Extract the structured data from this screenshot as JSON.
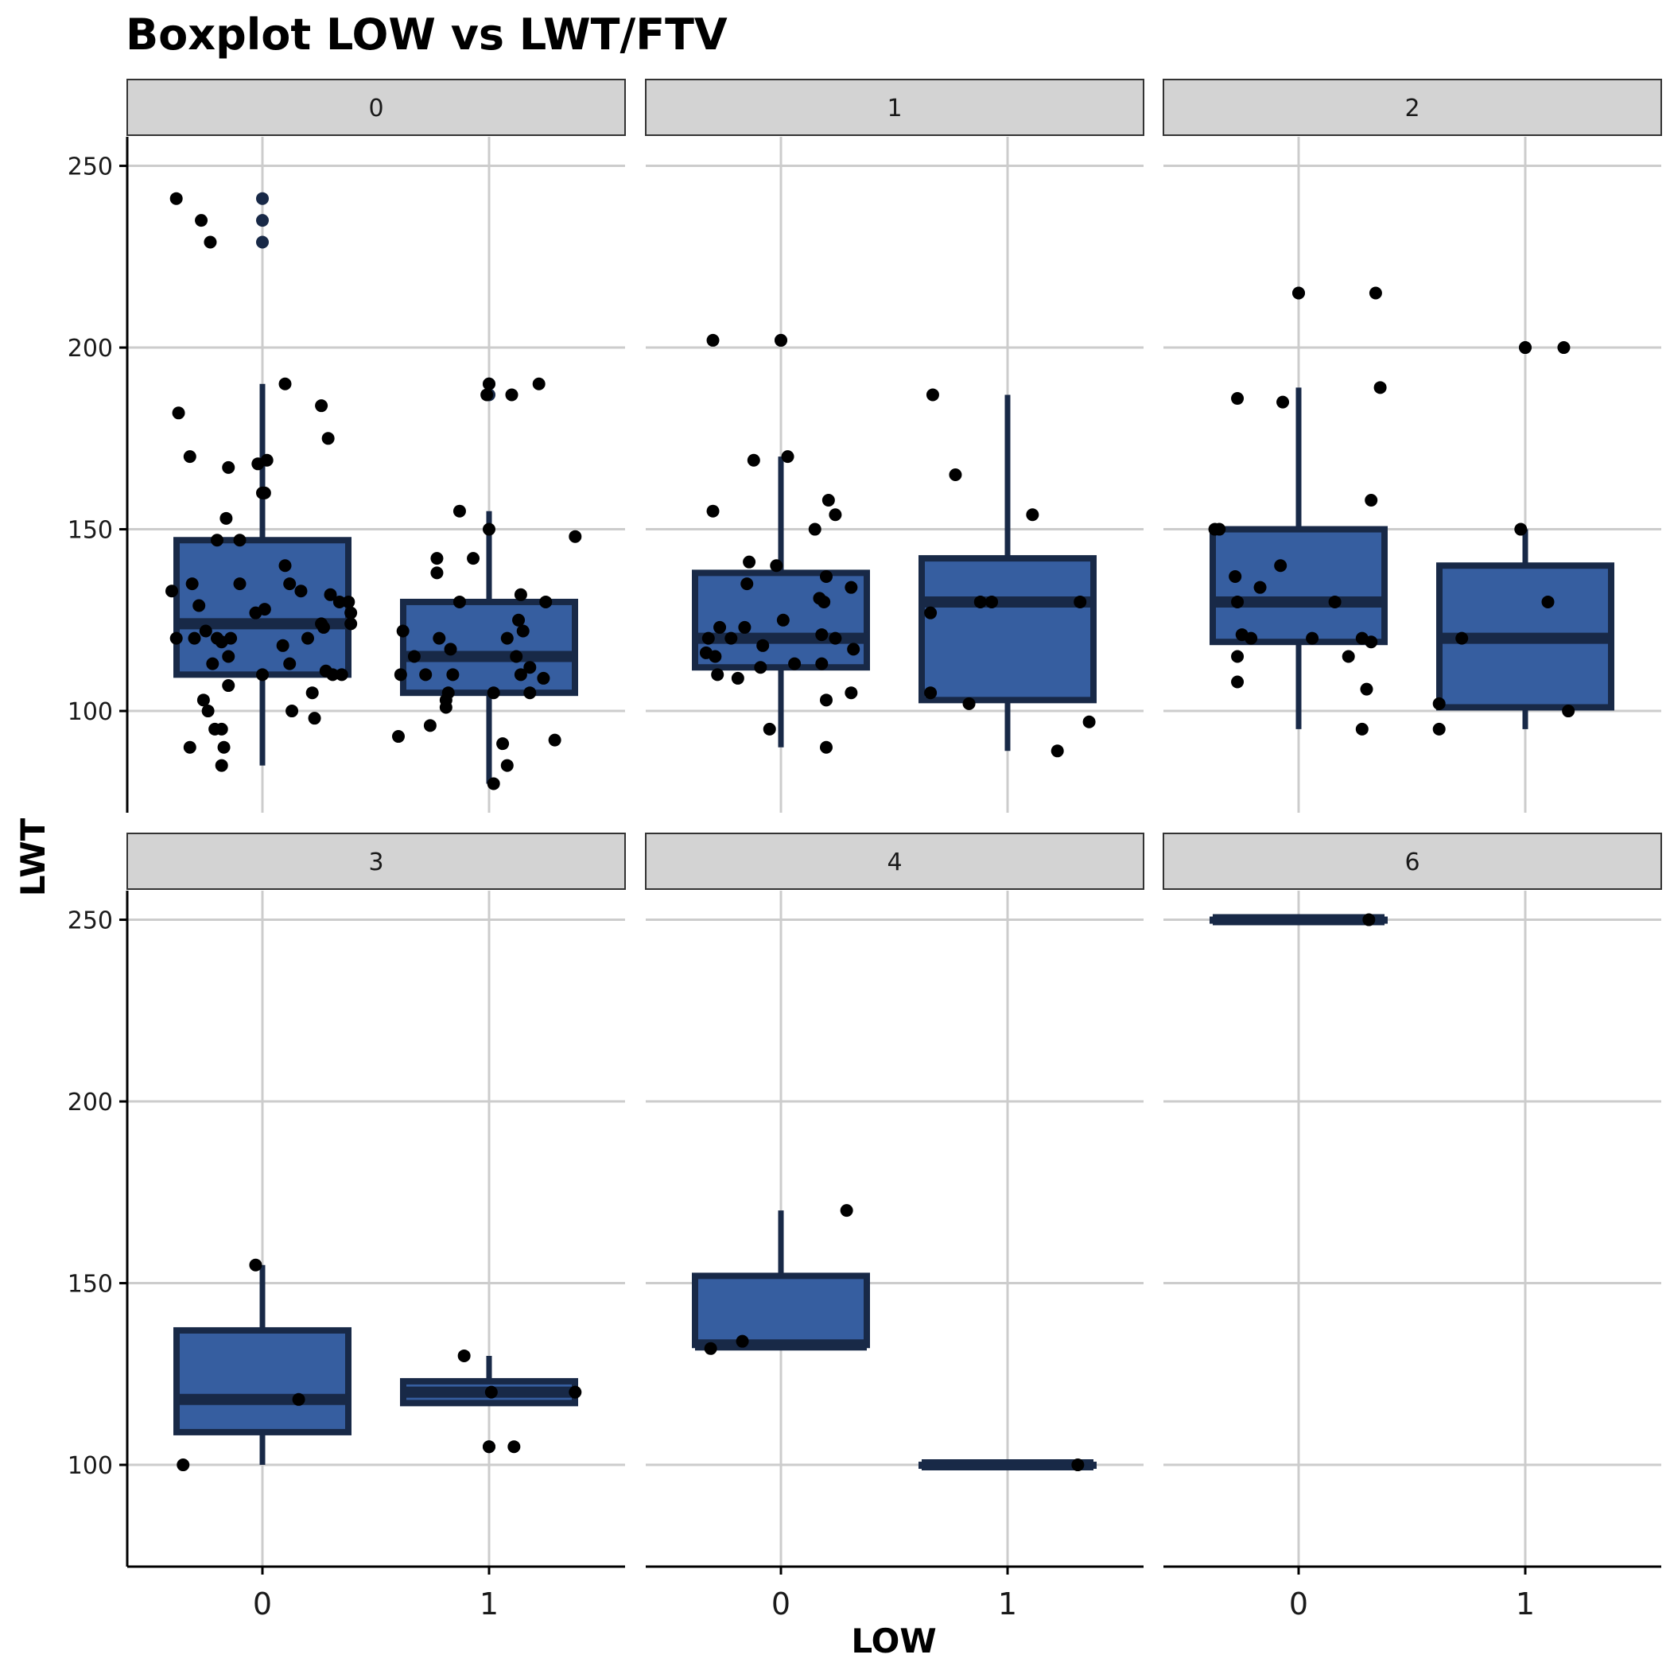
{
  "colors": {
    "box_fill": "#365ea0",
    "box_line": "#182947",
    "outlier": "#182947",
    "point": "#000000",
    "grid": "#cccccc",
    "strip": "#d3d3d3"
  },
  "chart_data": {
    "type": "boxplot",
    "title": "Boxplot LOW vs LWT/FTV",
    "xlabel": "LOW",
    "ylabel": "LWT",
    "ylim": [
      72,
      258
    ],
    "yticks": [
      100,
      150,
      200,
      250
    ],
    "categories": [
      "0",
      "1"
    ],
    "grid": true,
    "facet_variable": "FTV",
    "facets": [
      {
        "label": "0",
        "groups": [
          {
            "x": "0",
            "q1": 110,
            "median": 124,
            "q3": 147,
            "whisker_low": 85,
            "whisker_high": 190,
            "outliers": [
              241,
              235,
              229
            ],
            "points": [
              [
                -0.38,
                241
              ],
              [
                -0.27,
                235
              ],
              [
                -0.23,
                229
              ],
              [
                -0.37,
                182
              ],
              [
                -0.32,
                170
              ],
              [
                -0.15,
                167
              ],
              [
                0.1,
                190
              ],
              [
                0.26,
                184
              ],
              [
                0.29,
                175
              ],
              [
                -0.02,
                168
              ],
              [
                0.02,
                169
              ],
              [
                0,
                160
              ],
              [
                0.01,
                160
              ],
              [
                -0.16,
                153
              ],
              [
                -0.2,
                147
              ],
              [
                -0.1,
                147
              ],
              [
                -0.4,
                133
              ],
              [
                -0.31,
                135
              ],
              [
                -0.28,
                129
              ],
              [
                -0.38,
                120
              ],
              [
                -0.3,
                120
              ],
              [
                -0.25,
                122
              ],
              [
                -0.18,
                119
              ],
              [
                -0.14,
                120
              ],
              [
                -0.1,
                135
              ],
              [
                -0.2,
                120
              ],
              [
                -0.22,
                113
              ],
              [
                -0.15,
                115
              ],
              [
                -0.15,
                107
              ],
              [
                -0.26,
                103
              ],
              [
                -0.24,
                100
              ],
              [
                -0.21,
                95
              ],
              [
                -0.18,
                95
              ],
              [
                -0.32,
                90
              ],
              [
                -0.17,
                90
              ],
              [
                -0.18,
                85
              ],
              [
                -0.03,
                127
              ],
              [
                0.01,
                128
              ],
              [
                0.1,
                140
              ],
              [
                0.12,
                135
              ],
              [
                0.17,
                133
              ],
              [
                0.09,
                118
              ],
              [
                0.2,
                120
              ],
              [
                0.12,
                113
              ],
              [
                0.0,
                110
              ],
              [
                0.13,
                100
              ],
              [
                0.22,
                105
              ],
              [
                0.23,
                98
              ],
              [
                0.27,
                123
              ],
              [
                0.26,
                124
              ],
              [
                0.3,
                132
              ],
              [
                0.34,
                130
              ],
              [
                0.38,
                130
              ],
              [
                0.39,
                127
              ],
              [
                0.39,
                124
              ],
              [
                0.28,
                111
              ],
              [
                0.31,
                110
              ],
              [
                0.35,
                110
              ]
            ]
          },
          {
            "x": "1",
            "q1": 105,
            "median": 115,
            "q3": 130,
            "whisker_low": 80,
            "whisker_high": 155,
            "outliers": [
              190,
              187
            ],
            "points": [
              [
                0,
                190
              ],
              [
                -0.01,
                187
              ],
              [
                0.1,
                187
              ],
              [
                0.22,
                190
              ],
              [
                -0.13,
                155
              ],
              [
                0.0,
                150
              ],
              [
                0.38,
                148
              ],
              [
                -0.07,
                142
              ],
              [
                -0.23,
                142
              ],
              [
                -0.23,
                138
              ],
              [
                -0.38,
                122
              ],
              [
                -0.33,
                115
              ],
              [
                -0.28,
                110
              ],
              [
                -0.22,
                120
              ],
              [
                -0.17,
                117
              ],
              [
                -0.16,
                110
              ],
              [
                -0.18,
                105
              ],
              [
                -0.19,
                103
              ],
              [
                -0.19,
                101
              ],
              [
                -0.39,
                110
              ],
              [
                -0.4,
                93
              ],
              [
                -0.26,
                96
              ],
              [
                -0.13,
                130
              ],
              [
                0.08,
                120
              ],
              [
                0.13,
                125
              ],
              [
                0.14,
                132
              ],
              [
                0.15,
                122
              ],
              [
                0.12,
                115
              ],
              [
                0.14,
                110
              ],
              [
                0.18,
                112
              ],
              [
                0.18,
                105
              ],
              [
                0.24,
                109
              ],
              [
                0.25,
                130
              ],
              [
                0.02,
                105
              ],
              [
                0.06,
                91
              ],
              [
                0.08,
                85
              ],
              [
                0.29,
                92
              ],
              [
                0.02,
                80
              ]
            ]
          }
        ]
      },
      {
        "label": "1",
        "groups": [
          {
            "x": "0",
            "q1": 112,
            "median": 120,
            "q3": 138,
            "whisker_low": 90,
            "whisker_high": 170,
            "outliers": [
              202
            ],
            "points": [
              [
                0,
                202
              ],
              [
                -0.3,
                202
              ],
              [
                -0.3,
                155
              ],
              [
                -0.12,
                169
              ],
              [
                0.03,
                170
              ],
              [
                -0.14,
                141
              ],
              [
                -0.02,
                140
              ],
              [
                -0.15,
                135
              ],
              [
                -0.32,
                120
              ],
              [
                -0.27,
                123
              ],
              [
                -0.22,
                120
              ],
              [
                -0.16,
                123
              ],
              [
                -0.08,
                118
              ],
              [
                -0.33,
                116
              ],
              [
                -0.29,
                115
              ],
              [
                -0.28,
                110
              ],
              [
                -0.19,
                109
              ],
              [
                -0.09,
                112
              ],
              [
                0.01,
                125
              ],
              [
                0.15,
                150
              ],
              [
                0.21,
                158
              ],
              [
                0.24,
                154
              ],
              [
                0.2,
                137
              ],
              [
                0.31,
                134
              ],
              [
                0.17,
                131
              ],
              [
                0.19,
                130
              ],
              [
                0.18,
                121
              ],
              [
                0.24,
                120
              ],
              [
                0.18,
                113
              ],
              [
                0.32,
                117
              ],
              [
                -0.05,
                95
              ],
              [
                0.2,
                103
              ],
              [
                0.31,
                105
              ],
              [
                0.2,
                90
              ],
              [
                0.06,
                113
              ]
            ]
          },
          {
            "x": "1",
            "q1": 103,
            "median": 130,
            "q3": 142,
            "whisker_low": 89,
            "whisker_high": 187,
            "outliers": [],
            "points": [
              [
                -0.33,
                187
              ],
              [
                -0.23,
                165
              ],
              [
                0.11,
                154
              ],
              [
                -0.34,
                127
              ],
              [
                -0.12,
                130
              ],
              [
                -0.07,
                130
              ],
              [
                0.32,
                130
              ],
              [
                -0.34,
                105
              ],
              [
                -0.17,
                102
              ],
              [
                0.36,
                97
              ],
              [
                0.22,
                89
              ]
            ]
          }
        ]
      },
      {
        "label": "2",
        "groups": [
          {
            "x": "0",
            "q1": 119,
            "median": 130,
            "q3": 150,
            "whisker_low": 95,
            "whisker_high": 189,
            "outliers": [
              215
            ],
            "points": [
              [
                0,
                215
              ],
              [
                0.34,
                215
              ],
              [
                0.36,
                189
              ],
              [
                -0.27,
                186
              ],
              [
                -0.07,
                185
              ],
              [
                -0.37,
                150
              ],
              [
                -0.35,
                150
              ],
              [
                0.32,
                158
              ],
              [
                -0.08,
                140
              ],
              [
                -0.28,
                137
              ],
              [
                -0.17,
                134
              ],
              [
                -0.27,
                130
              ],
              [
                0.16,
                130
              ],
              [
                -0.25,
                121
              ],
              [
                -0.21,
                120
              ],
              [
                0.06,
                120
              ],
              [
                0.28,
                120
              ],
              [
                0.32,
                119
              ],
              [
                -0.27,
                115
              ],
              [
                0.22,
                115
              ],
              [
                -0.27,
                108
              ],
              [
                0.3,
                106
              ],
              [
                0.28,
                95
              ]
            ]
          },
          {
            "x": "1",
            "q1": 101,
            "median": 120,
            "q3": 140,
            "whisker_low": 95,
            "whisker_high": 150,
            "outliers": [
              200
            ],
            "points": [
              [
                0,
                200
              ],
              [
                0.17,
                200
              ],
              [
                -0.02,
                150
              ],
              [
                0.1,
                130
              ],
              [
                -0.28,
                120
              ],
              [
                -0.38,
                102
              ],
              [
                0.19,
                100
              ],
              [
                -0.38,
                95
              ]
            ]
          }
        ]
      },
      {
        "label": "3",
        "groups": [
          {
            "x": "0",
            "q1": 109,
            "median": 118,
            "q3": 137,
            "whisker_low": 100,
            "whisker_high": 155,
            "outliers": [],
            "points": [
              [
                -0.03,
                155
              ],
              [
                0.16,
                118
              ],
              [
                -0.35,
                100
              ]
            ]
          },
          {
            "x": "1",
            "q1": 117,
            "median": 120,
            "q3": 123,
            "whisker_low": 117,
            "whisker_high": 130,
            "outliers": [
              105
            ],
            "points": [
              [
                0,
                105
              ],
              [
                -0.11,
                130
              ],
              [
                0.01,
                120
              ],
              [
                0.38,
                120
              ],
              [
                0.11,
                105
              ]
            ]
          }
        ]
      },
      {
        "label": "4",
        "groups": [
          {
            "x": "0",
            "q1": 133,
            "median": 133,
            "q3": 152,
            "whisker_low": 133,
            "whisker_high": 170,
            "outliers": [],
            "points": [
              [
                0.29,
                170
              ],
              [
                -0.17,
                134
              ],
              [
                -0.31,
                132
              ]
            ]
          },
          {
            "x": "1",
            "q1": 100,
            "median": 100,
            "q3": 100,
            "whisker_low": 100,
            "whisker_high": 100,
            "outliers": [],
            "points": [
              [
                0.31,
                100
              ]
            ]
          }
        ]
      },
      {
        "label": "6",
        "groups": [
          {
            "x": "0",
            "q1": 250,
            "median": 250,
            "q3": 250,
            "whisker_low": 250,
            "whisker_high": 250,
            "outliers": [],
            "points": [
              [
                0.31,
                250
              ]
            ]
          }
        ]
      }
    ]
  }
}
